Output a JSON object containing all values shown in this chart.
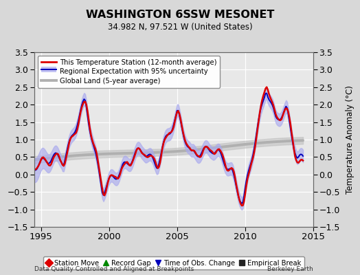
{
  "title": "WASHINGTON 6SSW MESONET",
  "subtitle": "34.982 N, 97.521 W (United States)",
  "ylabel": "Temperature Anomaly (°C)",
  "xlabel_left": "Data Quality Controlled and Aligned at Breakpoints",
  "xlabel_right": "Berkeley Earth",
  "xlim": [
    1994.5,
    2015.0
  ],
  "ylim": [
    -1.5,
    3.5
  ],
  "yticks": [
    -1.5,
    -1.0,
    -0.5,
    0.0,
    0.5,
    1.0,
    1.5,
    2.0,
    2.5,
    3.0,
    3.5
  ],
  "xticks": [
    1995,
    2000,
    2005,
    2010,
    2015
  ],
  "bg_color": "#d8d8d8",
  "plot_bg_color": "#e8e8e8",
  "grid_color": "#ffffff",
  "station_color": "#dd0000",
  "regional_color": "#0000bb",
  "regional_fill_color": "#aaaaee",
  "global_color": "#b0b0b0",
  "legend1_labels": [
    "This Temperature Station (12-month average)",
    "Regional Expectation with 95% uncertainty",
    "Global Land (5-year average)"
  ],
  "legend2_items": [
    {
      "label": "Station Move",
      "marker": "D",
      "color": "#dd0000"
    },
    {
      "label": "Record Gap",
      "marker": "^",
      "color": "#008800"
    },
    {
      "label": "Time of Obs. Change",
      "marker": "v",
      "color": "#0000bb"
    },
    {
      "label": "Empirical Break",
      "marker": "s",
      "color": "#222222"
    }
  ]
}
